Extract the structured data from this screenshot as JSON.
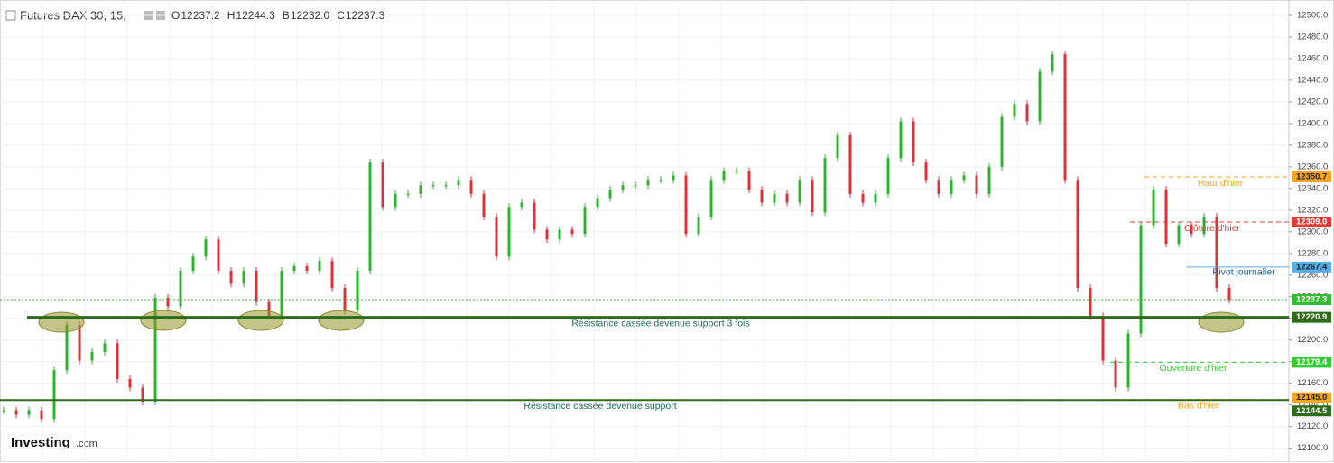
{
  "chart_data": {
    "type": "line",
    "title": "Futures DAX 30, 15,",
    "legend_values": [
      {
        "label": "O",
        "value": 12237.2
      },
      {
        "label": "H",
        "value": 12244.3
      },
      {
        "label": "B",
        "value": 12232.0,
        "value_label": "12232.0"
      },
      {
        "label": "C",
        "value": 12237.3
      }
    ],
    "values": [
      12135,
      12131,
      12135,
      12127,
      12172,
      12214,
      12181,
      12189,
      12197,
      12164,
      12156,
      12143,
      12239,
      12231,
      12264,
      12277,
      12293,
      12264,
      12252,
      12264,
      12235,
      12222,
      12264,
      12268,
      12264,
      12273,
      12248,
      12227,
      12264,
      12364,
      12323,
      12335,
      12335,
      12343,
      12343,
      12343,
      12348,
      12335,
      12314,
      12277,
      12323,
      12327,
      12302,
      12293,
      12302,
      12298,
      12323,
      12331,
      12339,
      12343,
      12343,
      12348,
      12348,
      12352,
      12298,
      12314,
      12348,
      12356,
      12356,
      12339,
      12327,
      12335,
      12327,
      12348,
      12318,
      12368,
      12389,
      12335,
      12327,
      12335,
      12368,
      12402,
      12364,
      12348,
      12335,
      12348,
      12352,
      12335,
      12360,
      12406,
      12418,
      12402,
      12448,
      12464,
      12348,
      12248,
      12222,
      12181,
      12156,
      12206,
      12306,
      12339,
      12289,
      12306,
      12298,
      12314,
      12248,
      12237
    ],
    "up_color": "#2cb52c",
    "down_color": "#e0303a",
    "ylim": [
      12093,
      12510
    ],
    "yticks": [
      {
        "value": 12100,
        "label": "12100.0"
      },
      {
        "value": 12120,
        "label": "12120.0"
      },
      {
        "value": 12140,
        "label": "12140.0"
      },
      {
        "value": 12160,
        "label": "12160.0"
      },
      {
        "value": 12180,
        "label": "12180.0"
      },
      {
        "value": 12200,
        "label": "12200.0"
      },
      {
        "value": 12220,
        "label": "12220.0"
      },
      {
        "value": 12240,
        "label": "12240.0"
      },
      {
        "value": 12260,
        "label": "12260.0"
      },
      {
        "value": 12280,
        "label": "12280.0"
      },
      {
        "value": 12300,
        "label": "12300.0"
      },
      {
        "value": 12320,
        "label": "12320.0"
      },
      {
        "value": 12340,
        "label": "12340.0"
      },
      {
        "value": 12360,
        "label": "12360.0"
      },
      {
        "value": 12380,
        "label": "12380.0"
      },
      {
        "value": 12400,
        "label": "12400.0"
      },
      {
        "value": 12420,
        "label": "12420.0"
      },
      {
        "value": 12440,
        "label": "12440.0"
      },
      {
        "value": 12460,
        "label": "12460.0"
      },
      {
        "value": 12480,
        "label": "12480.0"
      },
      {
        "value": 12500,
        "label": "12500.0"
      }
    ],
    "levels": [
      {
        "name": "Haut d'hier",
        "value": 12350.7,
        "value_label": "12350.7",
        "color": "#f5a623",
        "style": "dashed"
      },
      {
        "name": "Clôture d'hier",
        "value": 12309.0,
        "value_label": "12309.0",
        "color": "#e53935",
        "style": "dashed"
      },
      {
        "name": "Pivot journalier",
        "value": 12267.4,
        "value_label": "12267.4",
        "color": "#5aaee0",
        "style": "solid"
      },
      {
        "value": 12237.3,
        "value_label": "12237.3",
        "color": "#33bb33",
        "style": "dotted"
      },
      {
        "name": "Résistance cassée devenue support 3 fois",
        "value": 12220.9,
        "value_label": "12220.9",
        "color": "#2e6b1a",
        "style": "thick"
      },
      {
        "name": "Ouverture d'hier",
        "value": 12179.4,
        "value_label": "12179.4",
        "color": "#33cc33",
        "style": "dashed"
      },
      {
        "name": "Bas d'hier",
        "value": 12145.0,
        "value_label": "12145.0",
        "color": "#f5a623",
        "style": "dashed"
      },
      {
        "name": "Résistance cassée devenue support",
        "value": 12144.5,
        "value_label": "12144.5",
        "color": "#2e6b1a",
        "style": "solid"
      }
    ],
    "source": "Investing",
    "source_suffix": ".com"
  }
}
